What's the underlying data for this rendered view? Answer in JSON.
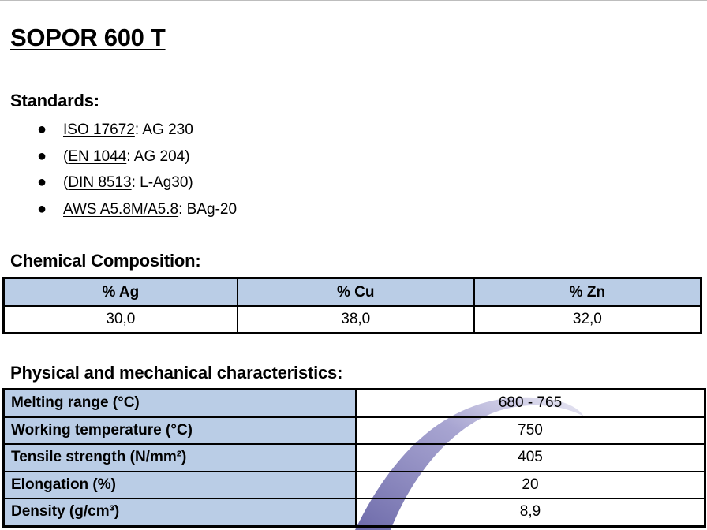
{
  "document": {
    "title": "SOPOR 600 T"
  },
  "standards": {
    "heading": "Standards:",
    "items": [
      {
        "prefix": "",
        "code": "ISO 17672",
        "rest": ": AG 230"
      },
      {
        "prefix": "(",
        "code": "EN 1044",
        "rest": ": AG 204)"
      },
      {
        "prefix": "(",
        "code": "DIN 8513",
        "rest": ": L-Ag30)"
      },
      {
        "prefix": "",
        "code": "AWS A5.8M/A5.8",
        "rest": ": BAg-20"
      }
    ]
  },
  "composition": {
    "heading": "Chemical Composition:",
    "headers": [
      "% Ag",
      "% Cu",
      "% Zn"
    ],
    "values": [
      "30,0",
      "38,0",
      "32,0"
    ]
  },
  "physical": {
    "heading": "Physical and mechanical characteristics:",
    "rows": [
      {
        "label": "Melting range (°C)",
        "value": "680 - 765"
      },
      {
        "label": "Working temperature (°C)",
        "value": "750"
      },
      {
        "label": "Tensile strength (N/mm²)",
        "value": "405"
      },
      {
        "label": "Elongation (%)",
        "value": "20"
      },
      {
        "label": "Density (g/cm³)",
        "value": "8,9"
      }
    ]
  },
  "colors": {
    "header_fill": "#bacde6",
    "watermark": "#7f7bb8"
  }
}
